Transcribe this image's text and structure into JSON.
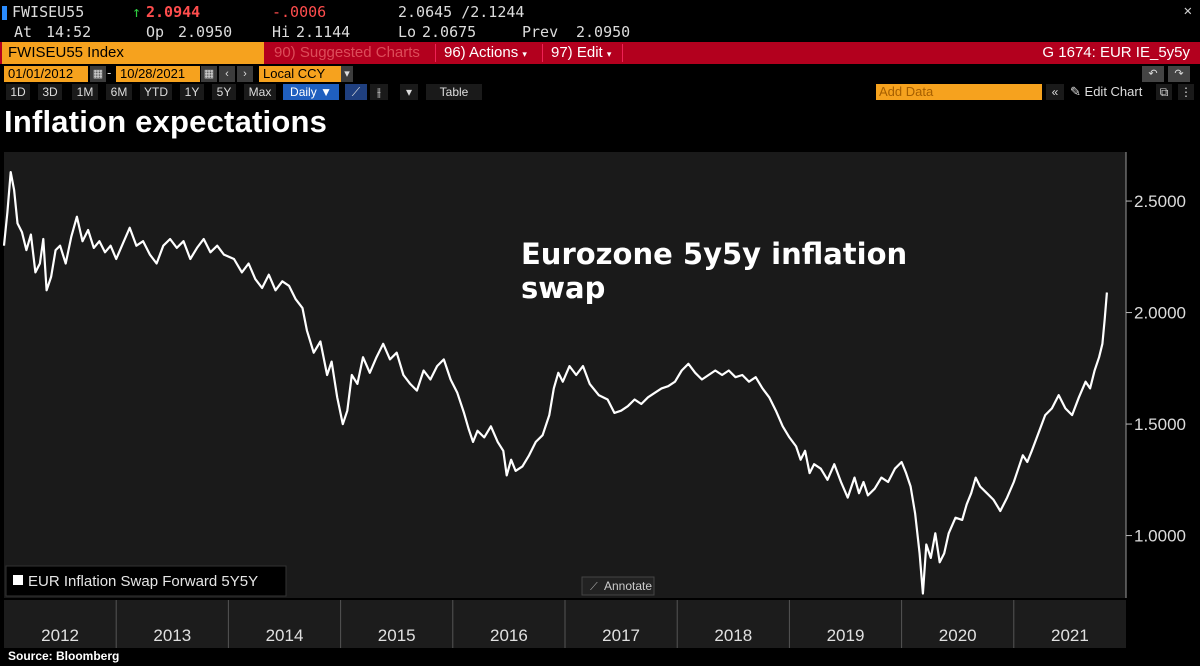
{
  "quote": {
    "ticker": "FWISEU55",
    "last": "2.0944",
    "change": "-.0006",
    "bid_ask": "2.0645 /2.1244",
    "time_label": "At",
    "time": "14:52",
    "open_label": "Op",
    "open": "2.0950",
    "high_label": "Hi",
    "high": "2.1144",
    "low_label": "Lo",
    "low": "2.0675",
    "prev_label": "Prev",
    "prev": "2.0950"
  },
  "menubar": {
    "security": "FWISEU55 Index",
    "suggested": "90) Suggested Charts",
    "actions": "96) Actions",
    "edit": "97) Edit",
    "chart_id": "G 1674: EUR IE_5y5y"
  },
  "daterow": {
    "start_date": "01/01/2012",
    "end_date": "10/28/2021",
    "currency": "Local CCY"
  },
  "toolbar": {
    "ranges": [
      "1D",
      "3D",
      "1M",
      "6M",
      "YTD",
      "1Y",
      "5Y",
      "Max"
    ],
    "frequency": "Daily",
    "table_label": "Table",
    "add_data_placeholder": "Add Data",
    "edit_chart": "Edit Chart"
  },
  "title": "Inflation expectations",
  "source": "Source: Bloomberg",
  "annotate_label": "Annotate",
  "colors": {
    "background": "#000000",
    "plot_background": "#1a1a1a",
    "series": "#ffffff",
    "accent_orange": "#f6a21e",
    "menu_red": "#b3001e",
    "price_red": "#ff4d4d"
  },
  "chart_data": {
    "type": "line",
    "title": "Eurozone 5y5y inflation swap",
    "legend": "EUR Inflation Swap Forward 5Y5Y",
    "legend_position": "bottom-left",
    "x_labels": [
      "2012",
      "2013",
      "2014",
      "2015",
      "2016",
      "2017",
      "2018",
      "2019",
      "2020",
      "2021"
    ],
    "y_ticks": [
      "2.5000",
      "2.0000",
      "1.5000",
      "1.0000"
    ],
    "y_tick_values": [
      2.5,
      2.0,
      1.5,
      1.0
    ],
    "ylim": [
      0.72,
      2.72
    ],
    "xlim": [
      2012.0,
      2022.0
    ],
    "grid": false,
    "series": [
      {
        "name": "EUR Inflation Swap Forward 5Y5Y",
        "points": [
          [
            2012.0,
            2.3
          ],
          [
            2012.03,
            2.45
          ],
          [
            2012.06,
            2.63
          ],
          [
            2012.09,
            2.55
          ],
          [
            2012.12,
            2.4
          ],
          [
            2012.16,
            2.36
          ],
          [
            2012.2,
            2.28
          ],
          [
            2012.24,
            2.35
          ],
          [
            2012.28,
            2.18
          ],
          [
            2012.32,
            2.22
          ],
          [
            2012.35,
            2.33
          ],
          [
            2012.38,
            2.1
          ],
          [
            2012.42,
            2.16
          ],
          [
            2012.46,
            2.28
          ],
          [
            2012.5,
            2.3
          ],
          [
            2012.55,
            2.22
          ],
          [
            2012.6,
            2.34
          ],
          [
            2012.65,
            2.43
          ],
          [
            2012.7,
            2.32
          ],
          [
            2012.75,
            2.37
          ],
          [
            2012.8,
            2.29
          ],
          [
            2012.85,
            2.32
          ],
          [
            2012.9,
            2.27
          ],
          [
            2012.95,
            2.3
          ],
          [
            2013.0,
            2.24
          ],
          [
            2013.06,
            2.31
          ],
          [
            2013.12,
            2.38
          ],
          [
            2013.18,
            2.3
          ],
          [
            2013.24,
            2.32
          ],
          [
            2013.3,
            2.26
          ],
          [
            2013.36,
            2.22
          ],
          [
            2013.42,
            2.3
          ],
          [
            2013.48,
            2.33
          ],
          [
            2013.54,
            2.29
          ],
          [
            2013.6,
            2.32
          ],
          [
            2013.66,
            2.24
          ],
          [
            2013.72,
            2.29
          ],
          [
            2013.78,
            2.33
          ],
          [
            2013.84,
            2.27
          ],
          [
            2013.9,
            2.3
          ],
          [
            2013.96,
            2.26
          ],
          [
            2014.05,
            2.24
          ],
          [
            2014.12,
            2.18
          ],
          [
            2014.18,
            2.22
          ],
          [
            2014.24,
            2.15
          ],
          [
            2014.3,
            2.11
          ],
          [
            2014.36,
            2.17
          ],
          [
            2014.42,
            2.1
          ],
          [
            2014.48,
            2.14
          ],
          [
            2014.54,
            2.12
          ],
          [
            2014.6,
            2.06
          ],
          [
            2014.66,
            2.02
          ],
          [
            2014.7,
            1.92
          ],
          [
            2014.76,
            1.82
          ],
          [
            2014.82,
            1.87
          ],
          [
            2014.88,
            1.72
          ],
          [
            2014.92,
            1.78
          ],
          [
            2014.97,
            1.62
          ],
          [
            2015.02,
            1.5
          ],
          [
            2015.06,
            1.56
          ],
          [
            2015.1,
            1.72
          ],
          [
            2015.15,
            1.68
          ],
          [
            2015.2,
            1.8
          ],
          [
            2015.26,
            1.73
          ],
          [
            2015.32,
            1.8
          ],
          [
            2015.38,
            1.86
          ],
          [
            2015.44,
            1.79
          ],
          [
            2015.5,
            1.82
          ],
          [
            2015.56,
            1.72
          ],
          [
            2015.62,
            1.68
          ],
          [
            2015.68,
            1.65
          ],
          [
            2015.74,
            1.74
          ],
          [
            2015.8,
            1.7
          ],
          [
            2015.86,
            1.76
          ],
          [
            2015.92,
            1.79
          ],
          [
            2015.98,
            1.7
          ],
          [
            2016.04,
            1.64
          ],
          [
            2016.1,
            1.55
          ],
          [
            2016.14,
            1.48
          ],
          [
            2016.18,
            1.42
          ],
          [
            2016.22,
            1.47
          ],
          [
            2016.28,
            1.44
          ],
          [
            2016.34,
            1.49
          ],
          [
            2016.4,
            1.42
          ],
          [
            2016.45,
            1.38
          ],
          [
            2016.48,
            1.27
          ],
          [
            2016.52,
            1.34
          ],
          [
            2016.56,
            1.29
          ],
          [
            2016.62,
            1.31
          ],
          [
            2016.68,
            1.36
          ],
          [
            2016.74,
            1.42
          ],
          [
            2016.8,
            1.45
          ],
          [
            2016.86,
            1.54
          ],
          [
            2016.9,
            1.66
          ],
          [
            2016.94,
            1.73
          ],
          [
            2016.98,
            1.69
          ],
          [
            2017.04,
            1.76
          ],
          [
            2017.1,
            1.72
          ],
          [
            2017.16,
            1.76
          ],
          [
            2017.22,
            1.68
          ],
          [
            2017.3,
            1.63
          ],
          [
            2017.38,
            1.61
          ],
          [
            2017.44,
            1.55
          ],
          [
            2017.5,
            1.56
          ],
          [
            2017.56,
            1.58
          ],
          [
            2017.62,
            1.61
          ],
          [
            2017.68,
            1.59
          ],
          [
            2017.74,
            1.62
          ],
          [
            2017.8,
            1.64
          ],
          [
            2017.86,
            1.66
          ],
          [
            2017.92,
            1.67
          ],
          [
            2017.98,
            1.69
          ],
          [
            2018.04,
            1.74
          ],
          [
            2018.1,
            1.77
          ],
          [
            2018.16,
            1.73
          ],
          [
            2018.22,
            1.7
          ],
          [
            2018.28,
            1.72
          ],
          [
            2018.34,
            1.74
          ],
          [
            2018.4,
            1.72
          ],
          [
            2018.46,
            1.74
          ],
          [
            2018.52,
            1.71
          ],
          [
            2018.58,
            1.72
          ],
          [
            2018.64,
            1.69
          ],
          [
            2018.7,
            1.71
          ],
          [
            2018.76,
            1.66
          ],
          [
            2018.82,
            1.62
          ],
          [
            2018.88,
            1.56
          ],
          [
            2018.94,
            1.49
          ],
          [
            2019.0,
            1.44
          ],
          [
            2019.06,
            1.4
          ],
          [
            2019.1,
            1.34
          ],
          [
            2019.14,
            1.38
          ],
          [
            2019.18,
            1.28
          ],
          [
            2019.22,
            1.32
          ],
          [
            2019.28,
            1.3
          ],
          [
            2019.34,
            1.25
          ],
          [
            2019.4,
            1.32
          ],
          [
            2019.46,
            1.24
          ],
          [
            2019.52,
            1.17
          ],
          [
            2019.58,
            1.26
          ],
          [
            2019.62,
            1.19
          ],
          [
            2019.66,
            1.24
          ],
          [
            2019.7,
            1.18
          ],
          [
            2019.76,
            1.21
          ],
          [
            2019.82,
            1.26
          ],
          [
            2019.88,
            1.24
          ],
          [
            2019.94,
            1.3
          ],
          [
            2020.0,
            1.33
          ],
          [
            2020.04,
            1.28
          ],
          [
            2020.08,
            1.22
          ],
          [
            2020.12,
            1.1
          ],
          [
            2020.16,
            0.92
          ],
          [
            2020.19,
            0.74
          ],
          [
            2020.22,
            0.96
          ],
          [
            2020.26,
            0.9
          ],
          [
            2020.3,
            1.01
          ],
          [
            2020.34,
            0.88
          ],
          [
            2020.38,
            0.92
          ],
          [
            2020.42,
            1.01
          ],
          [
            2020.48,
            1.08
          ],
          [
            2020.54,
            1.07
          ],
          [
            2020.58,
            1.14
          ],
          [
            2020.62,
            1.19
          ],
          [
            2020.66,
            1.26
          ],
          [
            2020.7,
            1.22
          ],
          [
            2020.76,
            1.19
          ],
          [
            2020.82,
            1.16
          ],
          [
            2020.88,
            1.11
          ],
          [
            2020.94,
            1.17
          ],
          [
            2021.0,
            1.24
          ],
          [
            2021.04,
            1.3
          ],
          [
            2021.08,
            1.36
          ],
          [
            2021.12,
            1.33
          ],
          [
            2021.16,
            1.38
          ],
          [
            2021.22,
            1.46
          ],
          [
            2021.28,
            1.54
          ],
          [
            2021.34,
            1.57
          ],
          [
            2021.4,
            1.63
          ],
          [
            2021.46,
            1.57
          ],
          [
            2021.52,
            1.54
          ],
          [
            2021.58,
            1.62
          ],
          [
            2021.64,
            1.69
          ],
          [
            2021.68,
            1.66
          ],
          [
            2021.72,
            1.74
          ],
          [
            2021.76,
            1.8
          ],
          [
            2021.79,
            1.86
          ],
          [
            2021.81,
            1.97
          ],
          [
            2021.83,
            2.09
          ]
        ]
      }
    ]
  }
}
